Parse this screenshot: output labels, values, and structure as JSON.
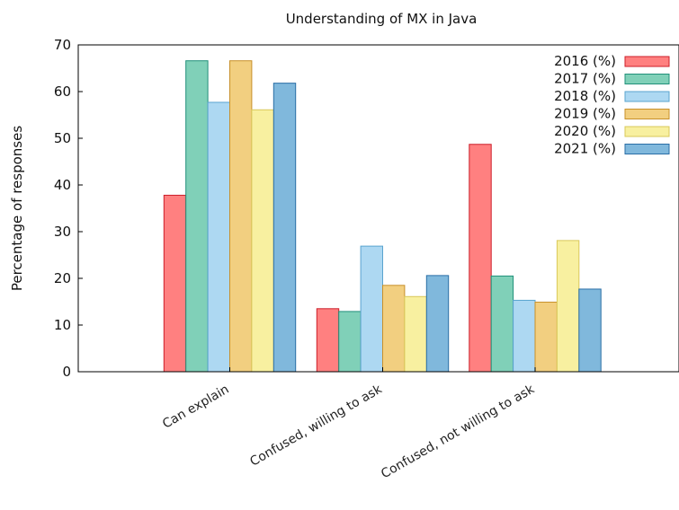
{
  "chart_data": {
    "type": "bar",
    "title": "Understanding of MX in Java",
    "xlabel": "",
    "ylabel": "Percentage of responses",
    "ylim": [
      0,
      70
    ],
    "yticks": [
      0,
      10,
      20,
      30,
      40,
      50,
      60,
      70
    ],
    "grid": false,
    "legend_position": "top-right",
    "categories": [
      "Can explain",
      "Confused, willing to ask",
      "Confused, not willing to ask"
    ],
    "series": [
      {
        "name": "2016 (%)",
        "color": "#ff8080",
        "stroke": "#cc1f2a",
        "values": [
          37.8,
          13.5,
          48.7
        ]
      },
      {
        "name": "2017 (%)",
        "color": "#80d0b8",
        "stroke": "#21907a",
        "values": [
          66.6,
          12.9,
          20.5
        ]
      },
      {
        "name": "2018 (%)",
        "color": "#add8f2",
        "stroke": "#5aa4cf",
        "values": [
          57.7,
          26.9,
          15.3
        ]
      },
      {
        "name": "2019 (%)",
        "color": "#f2cf80",
        "stroke": "#c8902a",
        "values": [
          66.6,
          18.5,
          14.9
        ]
      },
      {
        "name": "2020 (%)",
        "color": "#f8f0a0",
        "stroke": "#d9c85a",
        "values": [
          56.1,
          16.1,
          28.1
        ]
      },
      {
        "name": "2021 (%)",
        "color": "#80b8dc",
        "stroke": "#2a6ea6",
        "values": [
          61.8,
          20.6,
          17.7
        ]
      }
    ]
  }
}
